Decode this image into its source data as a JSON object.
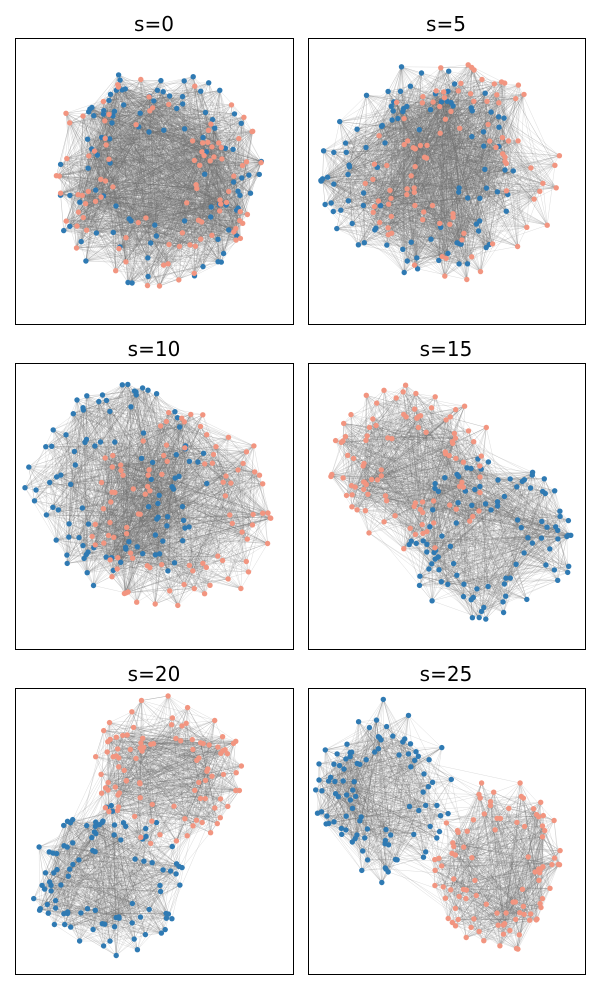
{
  "colors": {
    "community_a": "#2f7ab3",
    "community_b": "#f29580",
    "edge": "#6e6e6e",
    "frame": "#000000",
    "background": "#ffffff"
  },
  "chart_data": [
    {
      "type": "scatter",
      "title": "s=0",
      "series": [
        {
          "color_key": "community_a",
          "count": 100
        },
        {
          "color_key": "community_b",
          "count": 100
        }
      ],
      "grid": false,
      "axes_ticks": false
    },
    {
      "type": "scatter",
      "title": "s=5",
      "series": [
        {
          "color_key": "community_a",
          "count": 100
        },
        {
          "color_key": "community_b",
          "count": 100
        }
      ],
      "grid": false,
      "axes_ticks": false
    },
    {
      "type": "scatter",
      "title": "s=10",
      "series": [
        {
          "color_key": "community_a",
          "count": 100
        },
        {
          "color_key": "community_b",
          "count": 100
        }
      ],
      "grid": false,
      "axes_ticks": false
    },
    {
      "type": "scatter",
      "title": "s=15",
      "series": [
        {
          "color_key": "community_a",
          "count": 100
        },
        {
          "color_key": "community_b",
          "count": 100
        }
      ],
      "grid": false,
      "axes_ticks": false
    },
    {
      "type": "scatter",
      "title": "s=20",
      "series": [
        {
          "color_key": "community_a",
          "count": 100
        },
        {
          "color_key": "community_b",
          "count": 100
        }
      ],
      "grid": false,
      "axes_ticks": false
    },
    {
      "type": "scatter",
      "title": "s=25",
      "series": [
        {
          "color_key": "community_a",
          "count": 100
        },
        {
          "color_key": "community_b",
          "count": 100
        }
      ],
      "grid": false,
      "axes_ticks": false
    }
  ]
}
